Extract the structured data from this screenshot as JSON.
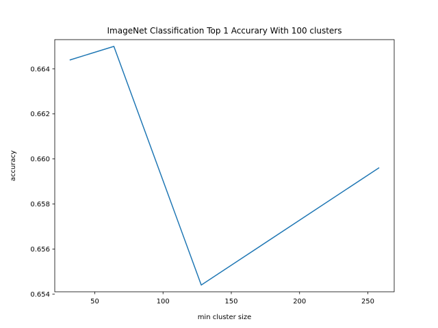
{
  "chart_data": {
    "type": "line",
    "title": "ImageNet Classification Top 1 Accurary With 100 clusters",
    "xlabel": "min cluster size",
    "ylabel": "accuracy",
    "xlim": [
      20.7,
      269.3
    ],
    "ylim": [
      0.6541,
      0.6653
    ],
    "xticks": [
      50,
      100,
      150,
      200,
      250
    ],
    "yticks": [
      0.654,
      0.656,
      0.658,
      0.66,
      0.662,
      0.664
    ],
    "xtick_labels": [
      "50",
      "100",
      "150",
      "200",
      "250"
    ],
    "ytick_labels": [
      "0.654",
      "0.656",
      "0.658",
      "0.660",
      "0.662",
      "0.664"
    ],
    "grid": false,
    "series": [
      {
        "color": "#1f77b4",
        "x": [
          32,
          64,
          128,
          258
        ],
        "y": [
          0.6644,
          0.665,
          0.6544,
          0.6596
        ]
      }
    ]
  }
}
